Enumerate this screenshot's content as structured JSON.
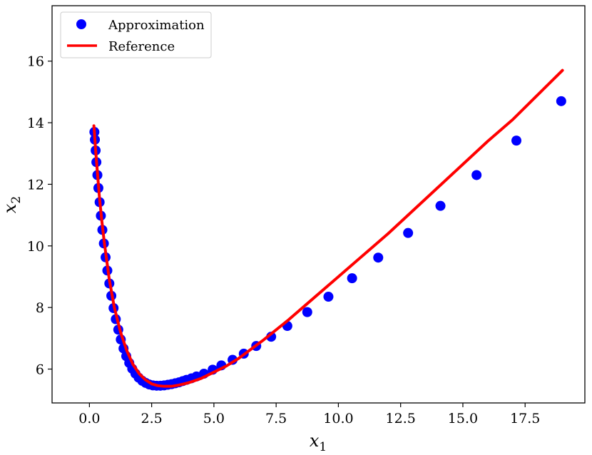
{
  "chart_data": {
    "type": "scatter",
    "xlabel": "x",
    "xlabel_sub": "1",
    "ylabel": "x",
    "ylabel_sub": "2",
    "xlim": [
      -1.5,
      19.9
    ],
    "ylim": [
      4.9,
      17.8
    ],
    "xticks": [
      0.0,
      2.5,
      5.0,
      7.5,
      10.0,
      12.5,
      15.0,
      17.5
    ],
    "xtick_labels": [
      "0.0",
      "2.5",
      "5.0",
      "7.5",
      "10.0",
      "12.5",
      "15.0",
      "17.5"
    ],
    "yticks": [
      6,
      8,
      10,
      12,
      14,
      16
    ],
    "ytick_labels": [
      "6",
      "8",
      "10",
      "12",
      "14",
      "16"
    ],
    "grid": false,
    "legend_position": "upper-left",
    "series": [
      {
        "name": "Approximation",
        "kind": "markers",
        "color": "#0000ff",
        "x": [
          0.2,
          0.22,
          0.25,
          0.28,
          0.32,
          0.36,
          0.41,
          0.46,
          0.52,
          0.58,
          0.65,
          0.72,
          0.8,
          0.88,
          0.97,
          1.06,
          1.16,
          1.26,
          1.37,
          1.48,
          1.6,
          1.72,
          1.85,
          1.98,
          2.12,
          2.26,
          2.4,
          2.55,
          2.7,
          2.85,
          3.0,
          3.15,
          3.3,
          3.45,
          3.6,
          3.75,
          3.9,
          4.1,
          4.3,
          4.6,
          4.95,
          5.3,
          5.75,
          6.2,
          6.7,
          7.3,
          7.95,
          8.75,
          9.6,
          10.55,
          11.6,
          12.8,
          14.1,
          15.55,
          17.15,
          18.95
        ],
        "y": [
          13.7,
          13.45,
          13.1,
          12.72,
          12.3,
          11.88,
          11.42,
          10.98,
          10.52,
          10.08,
          9.63,
          9.2,
          8.78,
          8.38,
          7.98,
          7.62,
          7.28,
          6.96,
          6.67,
          6.42,
          6.2,
          6.01,
          5.85,
          5.72,
          5.62,
          5.55,
          5.5,
          5.47,
          5.46,
          5.46,
          5.47,
          5.49,
          5.51,
          5.54,
          5.57,
          5.61,
          5.65,
          5.7,
          5.76,
          5.85,
          5.98,
          6.12,
          6.3,
          6.5,
          6.75,
          7.05,
          7.4,
          7.85,
          8.35,
          8.95,
          9.62,
          10.42,
          11.3,
          12.3,
          13.42,
          14.7
        ]
      },
      {
        "name": "Reference",
        "kind": "line",
        "color": "#ff0000",
        "x": [
          0.18,
          0.2,
          0.25,
          0.3,
          0.4,
          0.5,
          0.6,
          0.8,
          1.0,
          1.25,
          1.5,
          1.75,
          2.0,
          2.25,
          2.5,
          2.75,
          3.0,
          3.3,
          3.6,
          4.0,
          4.5,
          5.0,
          5.5,
          6.0,
          7.0,
          8.0,
          9.0,
          10.0,
          11.0,
          12.0,
          13.0,
          14.0,
          15.0,
          16.0,
          17.0,
          18.0,
          19.0
        ],
        "y": [
          13.9,
          13.7,
          13.1,
          12.6,
          11.6,
          10.8,
          10.1,
          8.9,
          8.0,
          7.2,
          6.6,
          6.15,
          5.85,
          5.65,
          5.52,
          5.46,
          5.44,
          5.44,
          5.48,
          5.56,
          5.7,
          5.9,
          6.1,
          6.35,
          6.95,
          7.6,
          8.3,
          9.0,
          9.7,
          10.4,
          11.15,
          11.9,
          12.65,
          13.4,
          14.1,
          14.9,
          15.7
        ]
      }
    ]
  }
}
